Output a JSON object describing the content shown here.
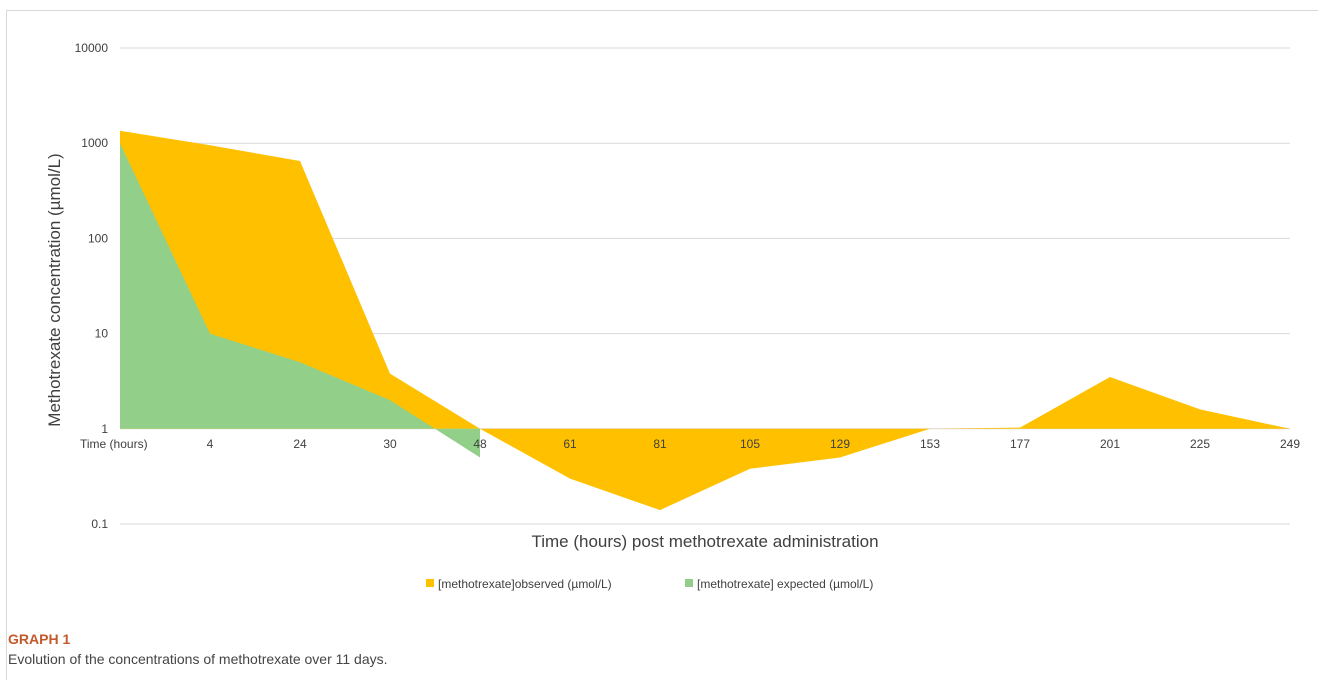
{
  "chart_data": {
    "type": "area",
    "scale": "log",
    "ylim": [
      0.1,
      10000
    ],
    "y_ticks": [
      "10000",
      "1000",
      "100",
      "10",
      "1",
      "0.1"
    ],
    "categories": [
      "Time (hours)",
      "4",
      "24",
      "30",
      "48",
      "61",
      "81",
      "105",
      "129",
      "153",
      "177",
      "201",
      "225",
      "249"
    ],
    "ylabel": "Methotrexate concentration (µmol/L)",
    "xlabel": "Time (hours) post methotrexate administration",
    "grid": true,
    "legend_position": "bottom",
    "series": [
      {
        "name": "[methotrexate]observed (µmol/L)",
        "color": "#ffc000",
        "values": [
          1350,
          950,
          650,
          3.8,
          1.0,
          0.3,
          0.14,
          0.38,
          0.5,
          1.0,
          1.03,
          3.5,
          1.6,
          1.0
        ]
      },
      {
        "name": "[methotrexate] expected (µmol/L)",
        "color": "#92d08a",
        "values": [
          1000,
          10,
          5,
          2,
          0.5,
          null,
          null,
          null,
          null,
          null,
          null,
          null,
          null,
          null
        ]
      }
    ]
  },
  "caption": {
    "label": "GRAPH 1",
    "text": "Evolution of the concentrations of methotrexate over 11 days."
  }
}
